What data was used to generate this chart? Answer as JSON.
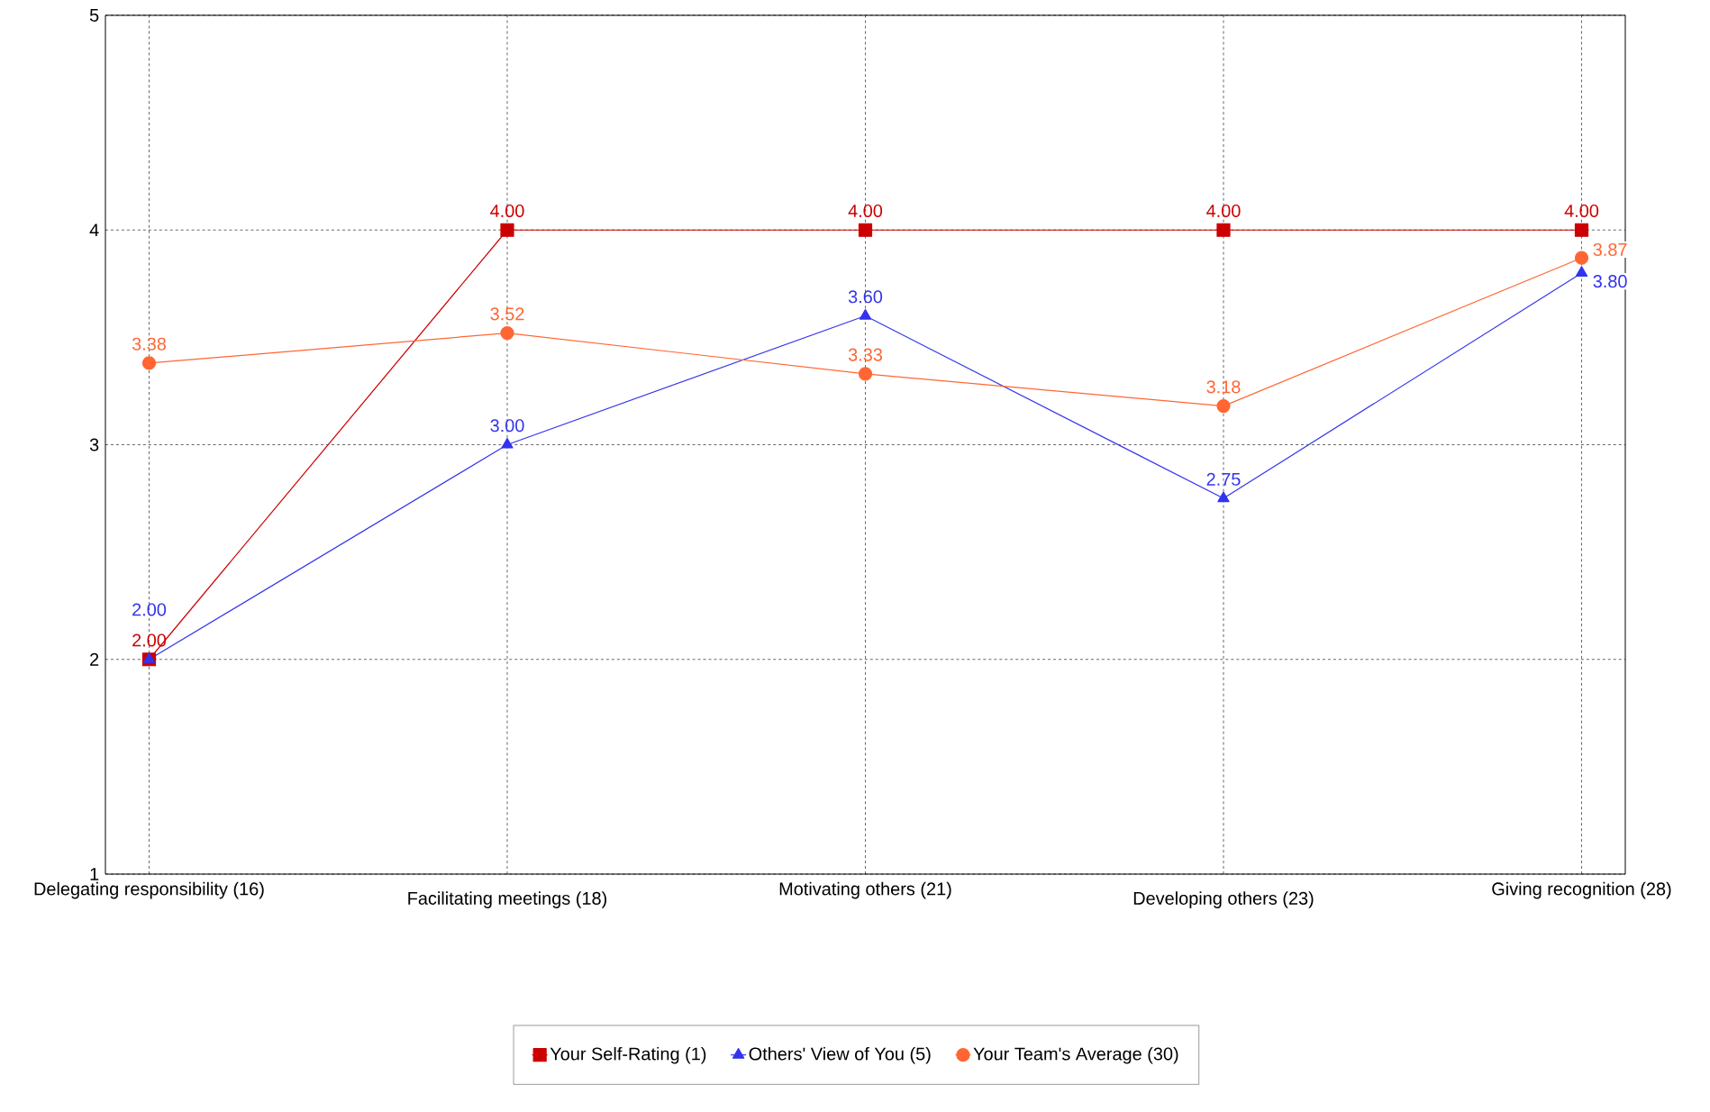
{
  "chart_data": {
    "type": "line",
    "categories": [
      "Delegating responsibility (16)",
      "Facilitating meetings (18)",
      "Motivating others (21)",
      "Developing others (23)",
      "Giving recognition (28)"
    ],
    "series": [
      {
        "name": "Your Self-Rating (1)",
        "color": "#cc0000",
        "marker": "square",
        "values": [
          2,
          4,
          4,
          4,
          4
        ],
        "value_labels": [
          "2.00",
          "4.00",
          "4.00",
          "4.00",
          "4.00"
        ]
      },
      {
        "name": "Others' View of You (5)",
        "color": "#3333ee",
        "marker": "triangle",
        "values": [
          2,
          3,
          3.6,
          2.75,
          3.8
        ],
        "value_labels": [
          "2.00",
          "3.00",
          "3.60",
          "2.75",
          "3.80"
        ]
      },
      {
        "name": "Your Team's Average (30)",
        "color": "#ff6633",
        "marker": "circle",
        "values": [
          3.38,
          3.52,
          3.33,
          3.18,
          3.87
        ],
        "value_labels": [
          "3.38",
          "3.52",
          "3.33",
          "3.18",
          "3.87"
        ]
      }
    ],
    "ylim": [
      1,
      5
    ],
    "yticks": [
      1,
      2,
      3,
      4,
      5
    ],
    "grid": true,
    "legend": "bottom",
    "line_style": "solid"
  }
}
